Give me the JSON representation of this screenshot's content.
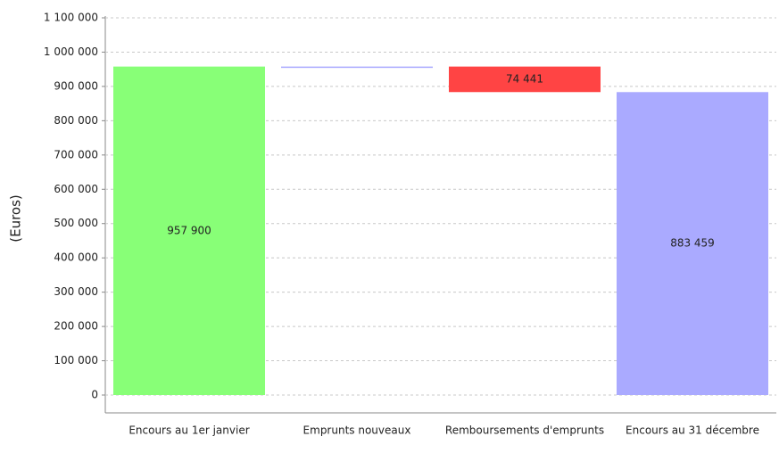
{
  "chart_data": {
    "type": "waterfall",
    "y_label": "(Euros)",
    "categories": [
      "Encours au 1er janvier",
      "Emprunts nouveaux",
      "Remboursements d'emprunts",
      "Encours au 31 décembre"
    ],
    "values": [
      957900,
      0,
      -74441,
      883459
    ],
    "value_labels": [
      "957 900",
      null,
      "74 441",
      "883 459"
    ],
    "colors": [
      "#88ff77",
      "#aaaaff",
      "#ff4444",
      "#aaaaff"
    ],
    "ylim": [
      0,
      1100000
    ],
    "yticks": [
      0,
      {
        "value": 100000,
        "label": "100 000"
      },
      {
        "value": 200000,
        "label": "200 000"
      },
      {
        "value": 300000,
        "label": "300 000"
      },
      {
        "value": 400000,
        "label": "400 000"
      },
      {
        "value": 500000,
        "label": "500 000"
      },
      {
        "value": 600000,
        "label": "600 000"
      },
      {
        "value": 700000,
        "label": "700 000"
      },
      {
        "value": 800000,
        "label": "800 000"
      },
      {
        "value": 900000,
        "label": "900 000"
      },
      {
        "value": 1000000,
        "label": "1 000 000"
      },
      {
        "value": 1100000,
        "label": "1 100 000"
      }
    ],
    "grid": true
  }
}
